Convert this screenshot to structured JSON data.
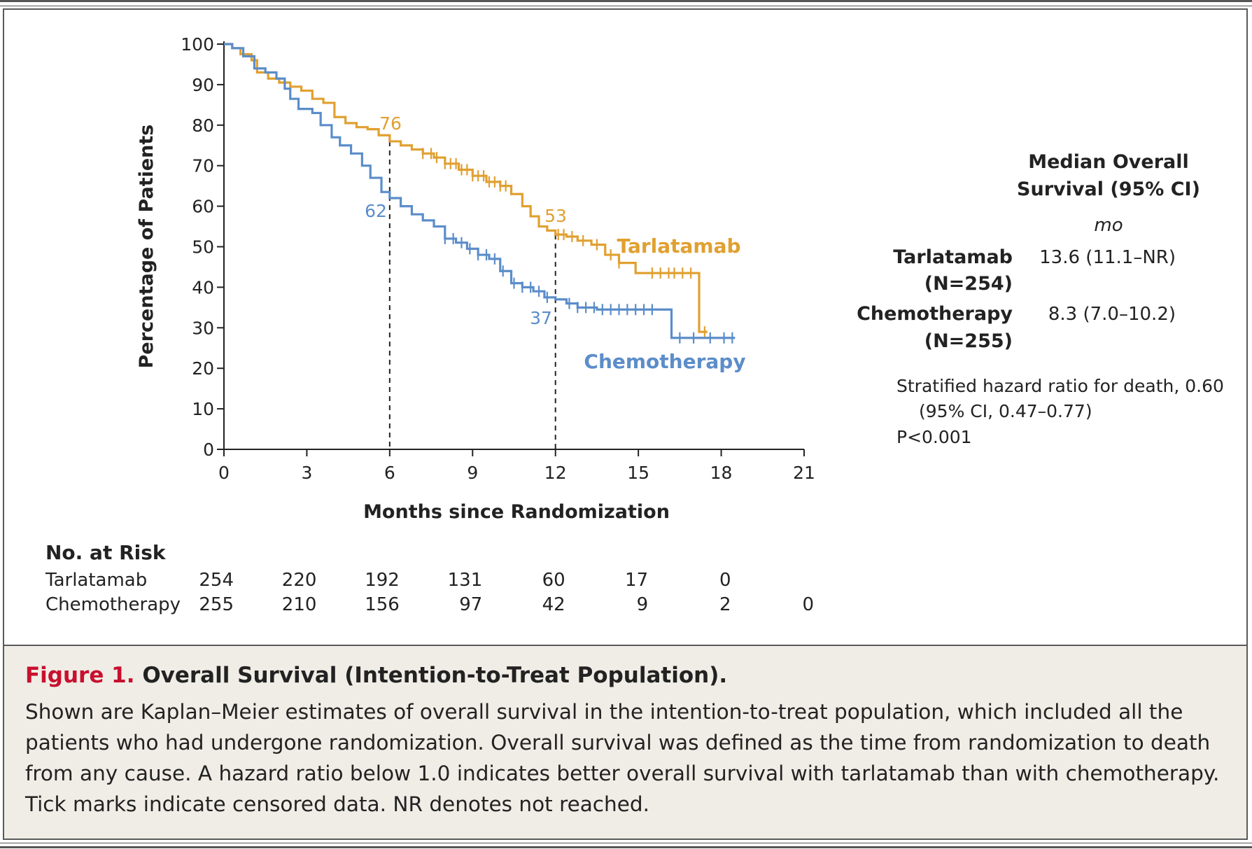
{
  "chart_data": {
    "type": "line",
    "subtype": "kaplan-meier",
    "ylabel": "Percentage of Patients",
    "xlabel": "Months since Randomization",
    "xlim": [
      0,
      21
    ],
    "ylim": [
      0,
      100
    ],
    "x_ticks": [
      "0",
      "3",
      "6",
      "9",
      "12",
      "15",
      "18",
      "21"
    ],
    "y_ticks": [
      "0",
      "10",
      "20",
      "30",
      "40",
      "50",
      "60",
      "70",
      "80",
      "90",
      "100"
    ],
    "grid": false,
    "series": [
      {
        "name": "Tarlatamab",
        "color": "#e0a030",
        "points": [
          [
            0,
            100
          ],
          [
            0.3,
            99
          ],
          [
            0.6,
            97.5
          ],
          [
            1,
            96
          ],
          [
            1.2,
            93
          ],
          [
            1.6,
            91.5
          ],
          [
            2,
            90.5
          ],
          [
            2.4,
            89.5
          ],
          [
            2.8,
            88.5
          ],
          [
            3.2,
            86.5
          ],
          [
            3.6,
            85.5
          ],
          [
            4,
            82
          ],
          [
            4.4,
            80.5
          ],
          [
            4.8,
            79.5
          ],
          [
            5.2,
            79
          ],
          [
            5.6,
            77.5
          ],
          [
            6,
            76
          ],
          [
            6.4,
            75
          ],
          [
            6.8,
            74
          ],
          [
            7.2,
            73
          ],
          [
            7.6,
            72
          ],
          [
            8,
            70.5
          ],
          [
            8.5,
            69
          ],
          [
            9,
            67.5
          ],
          [
            9.5,
            66
          ],
          [
            10,
            65
          ],
          [
            10.4,
            63
          ],
          [
            10.8,
            60
          ],
          [
            11.1,
            57.5
          ],
          [
            11.4,
            55
          ],
          [
            11.7,
            54
          ],
          [
            12,
            53
          ],
          [
            12.4,
            52.5
          ],
          [
            12.8,
            51.5
          ],
          [
            13.3,
            50.5
          ],
          [
            13.8,
            48
          ],
          [
            14.3,
            46
          ],
          [
            14.9,
            43.5
          ],
          [
            16,
            43.5
          ],
          [
            17.2,
            43.5
          ],
          [
            17.2,
            29
          ],
          [
            17.5,
            29
          ]
        ],
        "censor_x": [
          7.2,
          7.5,
          7.7,
          8,
          8.2,
          8.4,
          8.6,
          8.8,
          9,
          9.2,
          9.4,
          9.6,
          9.8,
          10,
          10.2,
          12.1,
          12.3,
          12.6,
          13,
          13.5,
          14,
          14.3,
          15.5,
          15.8,
          16.1,
          16.3,
          16.6,
          16.9,
          17.4
        ]
      },
      {
        "name": "Chemotherapy",
        "color": "#5b8dc9",
        "points": [
          [
            0,
            100
          ],
          [
            0.3,
            99
          ],
          [
            0.7,
            97
          ],
          [
            1.1,
            94
          ],
          [
            1.5,
            93
          ],
          [
            1.9,
            91.5
          ],
          [
            2.2,
            89
          ],
          [
            2.4,
            86.5
          ],
          [
            2.7,
            84
          ],
          [
            3.2,
            83
          ],
          [
            3.5,
            80
          ],
          [
            3.9,
            77
          ],
          [
            4.2,
            75
          ],
          [
            4.6,
            73
          ],
          [
            5,
            70
          ],
          [
            5.3,
            67
          ],
          [
            5.7,
            63.5
          ],
          [
            6,
            62
          ],
          [
            6.4,
            60
          ],
          [
            6.8,
            58
          ],
          [
            7.2,
            56.5
          ],
          [
            7.6,
            55
          ],
          [
            8,
            52
          ],
          [
            8.4,
            51
          ],
          [
            8.8,
            49.5
          ],
          [
            9.2,
            48
          ],
          [
            9.6,
            47
          ],
          [
            10,
            44
          ],
          [
            10.4,
            41
          ],
          [
            10.8,
            40
          ],
          [
            11.2,
            39
          ],
          [
            11.6,
            37.5
          ],
          [
            12,
            37
          ],
          [
            12.4,
            36
          ],
          [
            12.8,
            35
          ],
          [
            13.5,
            34.5
          ],
          [
            14.5,
            34.5
          ],
          [
            15.5,
            34.5
          ],
          [
            16.2,
            34.5
          ],
          [
            16.2,
            27.5
          ],
          [
            18.5,
            27.5
          ]
        ],
        "censor_x": [
          8,
          8.3,
          8.6,
          8.9,
          9.2,
          9.5,
          9.8,
          10.1,
          10.5,
          10.8,
          11.1,
          11.4,
          11.7,
          12.5,
          12.8,
          13.1,
          13.4,
          13.7,
          14,
          14.3,
          14.6,
          14.9,
          15.2,
          15.5,
          16.5,
          17,
          17.6,
          18.1,
          18.4
        ]
      }
    ],
    "annotations": [
      {
        "text": "76",
        "series": "Tarlatamab",
        "x": 6,
        "y": 76
      },
      {
        "text": "62",
        "series": "Chemotherapy",
        "x": 6,
        "y": 62
      },
      {
        "text": "53",
        "series": "Tarlatamab",
        "x": 12,
        "y": 53
      },
      {
        "text": "37",
        "series": "Chemotherapy",
        "x": 12,
        "y": 37
      }
    ],
    "reference_lines_x": [
      6,
      12
    ]
  },
  "labels": {
    "tarlatamab_curve": "Tarlatamab",
    "chemo_curve": "Chemotherapy",
    "ann_76": "76",
    "ann_62": "62",
    "ann_53": "53",
    "ann_37": "37"
  },
  "median_table": {
    "heading_line1": "Median Overall",
    "heading_line2": "Survival (95% CI)",
    "unit": "mo",
    "rows": [
      {
        "name": "Tarlatamab",
        "n": "(N=254)",
        "value": "13.6 (11.1–NR)"
      },
      {
        "name": "Chemotherapy",
        "n": "(N=255)",
        "value": "8.3 (7.0–10.2)"
      }
    ],
    "hr_line1": "Stratified hazard ratio for death, 0.60",
    "hr_line2": "(95% CI, 0.47–0.77)",
    "p_value": "P<0.001"
  },
  "risk_table": {
    "title": "No. at Risk",
    "rows": [
      {
        "name": "Tarlatamab",
        "values": [
          "254",
          "220",
          "192",
          "131",
          "60",
          "17",
          "0",
          ""
        ]
      },
      {
        "name": "Chemotherapy",
        "values": [
          "255",
          "210",
          "156",
          "97",
          "42",
          "9",
          "2",
          "0"
        ]
      }
    ]
  },
  "caption": {
    "figure_label": "Figure 1.",
    "title": "Overall Survival (Intention-to-Treat Population).",
    "body": "Shown are Kaplan–Meier estimates of overall survival in the intention-to-treat population, which included all the patients who had undergone randomization. Overall survival was defined as the time from randomization to death from any cause. A hazard ratio below 1.0 indicates better overall survival with tarlatamab than with chemotherapy. Tick marks indicate censored data. NR denotes not reached."
  }
}
